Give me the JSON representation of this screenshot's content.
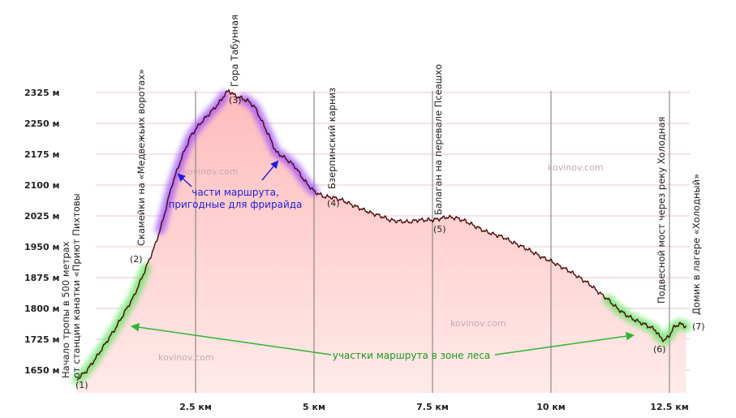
{
  "chart_data": {
    "type": "area",
    "xlabel": "",
    "ylabel": "",
    "xlim": [
      0,
      12.85
    ],
    "ylim": [
      1620,
      2340
    ],
    "x_ticks": [
      2.5,
      5,
      7.5,
      10,
      12.5
    ],
    "x_tick_labels": [
      "2.5 км",
      "5 км",
      "7.5 км",
      "10 км",
      "12.5 км"
    ],
    "y_ticks": [
      1650,
      1725,
      1800,
      1875,
      1950,
      2025,
      2100,
      2175,
      2250,
      2325
    ],
    "y_tick_labels": [
      "1650 м",
      "1725 м",
      "1800 м",
      "1875 м",
      "1950 м",
      "2025 м",
      "2100 м",
      "2175 м",
      "2250 м",
      "2325 м"
    ],
    "grid": true,
    "profile": {
      "x": [
        0,
        0.2,
        0.4,
        0.6,
        0.8,
        1.0,
        1.2,
        1.35,
        1.5,
        1.65,
        1.8,
        2.0,
        2.2,
        2.4,
        2.6,
        2.8,
        3.0,
        3.1,
        3.2,
        3.3,
        3.45,
        3.6,
        3.75,
        3.9,
        4.05,
        4.2,
        4.4,
        4.6,
        4.8,
        5.0,
        5.2,
        5.4,
        5.6,
        5.8,
        6.0,
        6.2,
        6.4,
        6.6,
        6.8,
        7.0,
        7.2,
        7.4,
        7.5,
        7.6,
        7.8,
        8.0,
        8.2,
        8.4,
        8.6,
        8.8,
        9.0,
        9.2,
        9.4,
        9.6,
        9.8,
        10.0,
        10.2,
        10.4,
        10.6,
        10.8,
        11.0,
        11.2,
        11.4,
        11.6,
        11.8,
        12.0,
        12.2,
        12.3,
        12.4,
        12.5,
        12.6,
        12.7,
        12.8,
        12.85
      ],
      "y": [
        1628,
        1648,
        1680,
        1715,
        1750,
        1790,
        1830,
        1870,
        1912,
        1955,
        2010,
        2100,
        2165,
        2220,
        2250,
        2275,
        2300,
        2318,
        2330,
        2320,
        2312,
        2305,
        2290,
        2255,
        2220,
        2180,
        2165,
        2145,
        2110,
        2085,
        2072,
        2070,
        2063,
        2052,
        2042,
        2032,
        2025,
        2015,
        2012,
        2010,
        2015,
        2015,
        2015,
        2017,
        2022,
        2020,
        2012,
        2000,
        1988,
        1980,
        1973,
        1960,
        1950,
        1938,
        1925,
        1915,
        1902,
        1890,
        1875,
        1860,
        1840,
        1822,
        1800,
        1783,
        1770,
        1760,
        1748,
        1730,
        1722,
        1735,
        1755,
        1762,
        1760,
        1755
      ]
    },
    "points_of_interest": [
      {
        "marker": "(1)",
        "x": 0.0,
        "y": 1628,
        "name": "Начало тропы в 500 метрах\nот станции канатки «Приют Пихтовы"
      },
      {
        "marker": "(2)",
        "x": 1.4,
        "y": 1905,
        "name": "Скамейки на «Медвежьих воротах»"
      },
      {
        "marker": "(3)",
        "x": 3.2,
        "y": 2330,
        "name": "Гора Табунная"
      },
      {
        "marker": "(4)",
        "x": 5.1,
        "y": 2085,
        "name": "Бзерпинский карниз"
      },
      {
        "marker": "(5)",
        "x": 7.5,
        "y": 2015,
        "name": "Балаган на перевале Псеашхо"
      },
      {
        "marker": "(6)",
        "x": 12.4,
        "y": 1722,
        "name": "Подвесной мост через реку Холодная"
      },
      {
        "marker": "(7)",
        "x": 12.8,
        "y": 1760,
        "name": "Домик в лагере «Холодный»"
      }
    ],
    "highlights": {
      "freeride": {
        "label": "части маршрута,\nпригодные для фрирайда",
        "color": "#9b4dff",
        "segments": [
          [
            1.75,
            3.1
          ],
          [
            3.5,
            5.0
          ]
        ]
      },
      "forest": {
        "label": "участки маршрута в зоне леса",
        "color": "#5ee35e",
        "segments": [
          [
            0.0,
            1.45
          ],
          [
            11.2,
            12.85
          ]
        ]
      }
    },
    "watermarks": [
      "kovinov.com",
      "kovinov.com",
      "kovinov.com",
      "kovinov.com"
    ],
    "colors": {
      "fill_top": "#ffbcbc",
      "fill_bottom": "#ffeaea",
      "line": "#4a0a0a",
      "grid_v": "#777777",
      "grid_h": "#f2c6c6"
    }
  }
}
